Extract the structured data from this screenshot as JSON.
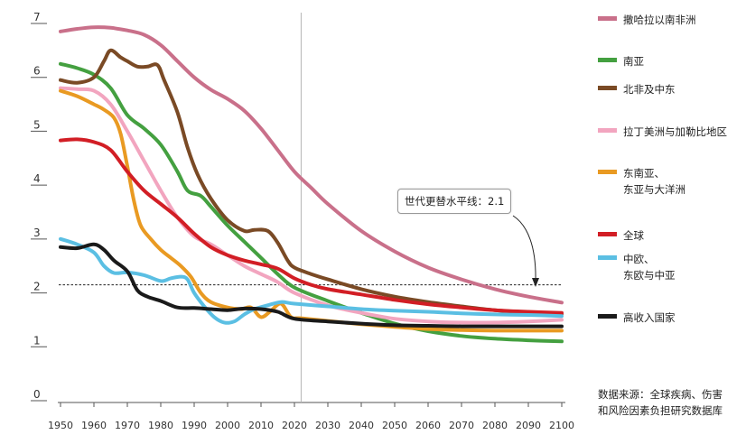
{
  "chart_data": {
    "type": "line",
    "title": "",
    "xlabel": "",
    "ylabel": "",
    "xlim": [
      1950,
      2100
    ],
    "ylim": [
      0,
      7
    ],
    "x_ticks": [
      "1950",
      "1960",
      "1970",
      "1980",
      "1990",
      "2000",
      "2010",
      "2020",
      "2030",
      "2040",
      "2050",
      "2060",
      "2070",
      "2080",
      "2090",
      "2100"
    ],
    "y_ticks": [
      "0",
      "1",
      "2",
      "3",
      "4",
      "5",
      "6",
      "7"
    ],
    "current_year_marker": 2022,
    "reference_line": {
      "value": 2.1,
      "label": "世代更替水平线：2.1"
    },
    "legend_position": "right",
    "series": [
      {
        "name": "撒哈拉以南非洲",
        "color": "#c9708a",
        "points": [
          [
            1950,
            6.8
          ],
          [
            1955,
            6.85
          ],
          [
            1960,
            6.88
          ],
          [
            1965,
            6.87
          ],
          [
            1970,
            6.82
          ],
          [
            1975,
            6.74
          ],
          [
            1980,
            6.55
          ],
          [
            1985,
            6.25
          ],
          [
            1990,
            5.95
          ],
          [
            1995,
            5.72
          ],
          [
            2000,
            5.55
          ],
          [
            2005,
            5.33
          ],
          [
            2010,
            5.0
          ],
          [
            2015,
            4.6
          ],
          [
            2020,
            4.2
          ],
          [
            2025,
            3.9
          ],
          [
            2030,
            3.6
          ],
          [
            2040,
            3.1
          ],
          [
            2050,
            2.72
          ],
          [
            2060,
            2.42
          ],
          [
            2070,
            2.2
          ],
          [
            2080,
            2.02
          ],
          [
            2090,
            1.88
          ],
          [
            2100,
            1.77
          ]
        ]
      },
      {
        "name": "南亚",
        "color": "#44a040",
        "points": [
          [
            1950,
            6.2
          ],
          [
            1955,
            6.12
          ],
          [
            1960,
            6.0
          ],
          [
            1965,
            5.75
          ],
          [
            1970,
            5.25
          ],
          [
            1975,
            5.0
          ],
          [
            1980,
            4.7
          ],
          [
            1985,
            4.2
          ],
          [
            1988,
            3.85
          ],
          [
            1992,
            3.75
          ],
          [
            1995,
            3.55
          ],
          [
            2000,
            3.2
          ],
          [
            2005,
            2.9
          ],
          [
            2010,
            2.6
          ],
          [
            2015,
            2.3
          ],
          [
            2020,
            2.05
          ],
          [
            2030,
            1.8
          ],
          [
            2040,
            1.58
          ],
          [
            2050,
            1.38
          ],
          [
            2060,
            1.24
          ],
          [
            2070,
            1.15
          ],
          [
            2080,
            1.1
          ],
          [
            2090,
            1.07
          ],
          [
            2100,
            1.05
          ]
        ]
      },
      {
        "name": "北非及中东",
        "color": "#7a4a25",
        "points": [
          [
            1950,
            5.9
          ],
          [
            1955,
            5.85
          ],
          [
            1960,
            5.95
          ],
          [
            1963,
            6.25
          ],
          [
            1965,
            6.45
          ],
          [
            1968,
            6.32
          ],
          [
            1970,
            6.25
          ],
          [
            1973,
            6.15
          ],
          [
            1976,
            6.15
          ],
          [
            1979,
            6.18
          ],
          [
            1981,
            5.9
          ],
          [
            1985,
            5.3
          ],
          [
            1988,
            4.65
          ],
          [
            1991,
            4.15
          ],
          [
            1995,
            3.7
          ],
          [
            2000,
            3.3
          ],
          [
            2005,
            3.1
          ],
          [
            2008,
            3.12
          ],
          [
            2012,
            3.1
          ],
          [
            2015,
            2.88
          ],
          [
            2018,
            2.55
          ],
          [
            2020,
            2.42
          ],
          [
            2025,
            2.3
          ],
          [
            2030,
            2.2
          ],
          [
            2040,
            2.02
          ],
          [
            2050,
            1.88
          ],
          [
            2060,
            1.78
          ],
          [
            2070,
            1.7
          ],
          [
            2080,
            1.63
          ],
          [
            2090,
            1.59
          ],
          [
            2100,
            1.56
          ]
        ]
      },
      {
        "name": "拉丁美洲与加勒比地区",
        "color": "#f2a5bf",
        "points": [
          [
            1950,
            5.75
          ],
          [
            1955,
            5.73
          ],
          [
            1960,
            5.7
          ],
          [
            1965,
            5.45
          ],
          [
            1970,
            4.95
          ],
          [
            1975,
            4.4
          ],
          [
            1980,
            3.85
          ],
          [
            1985,
            3.35
          ],
          [
            1990,
            3.0
          ],
          [
            1995,
            2.85
          ],
          [
            2000,
            2.65
          ],
          [
            2005,
            2.45
          ],
          [
            2010,
            2.3
          ],
          [
            2015,
            2.15
          ],
          [
            2020,
            1.95
          ],
          [
            2030,
            1.72
          ],
          [
            2040,
            1.58
          ],
          [
            2050,
            1.47
          ],
          [
            2060,
            1.42
          ],
          [
            2070,
            1.4
          ],
          [
            2080,
            1.4
          ],
          [
            2090,
            1.42
          ],
          [
            2100,
            1.45
          ]
        ]
      },
      {
        "name": "东南亚、\n东亚与大洋洲",
        "color": "#e99a22",
        "points": [
          [
            1950,
            5.7
          ],
          [
            1955,
            5.6
          ],
          [
            1960,
            5.45
          ],
          [
            1963,
            5.35
          ],
          [
            1966,
            5.2
          ],
          [
            1968,
            4.9
          ],
          [
            1970,
            4.3
          ],
          [
            1972,
            3.65
          ],
          [
            1974,
            3.2
          ],
          [
            1977,
            2.95
          ],
          [
            1980,
            2.75
          ],
          [
            1983,
            2.6
          ],
          [
            1986,
            2.45
          ],
          [
            1989,
            2.25
          ],
          [
            1992,
            1.95
          ],
          [
            1995,
            1.78
          ],
          [
            2000,
            1.68
          ],
          [
            2004,
            1.65
          ],
          [
            2007,
            1.68
          ],
          [
            2010,
            1.5
          ],
          [
            2013,
            1.62
          ],
          [
            2016,
            1.75
          ],
          [
            2019,
            1.5
          ],
          [
            2022,
            1.48
          ],
          [
            2030,
            1.43
          ],
          [
            2040,
            1.37
          ],
          [
            2050,
            1.32
          ],
          [
            2060,
            1.28
          ],
          [
            2070,
            1.26
          ],
          [
            2080,
            1.25
          ],
          [
            2090,
            1.25
          ],
          [
            2100,
            1.25
          ]
        ]
      },
      {
        "name": "全球",
        "color": "#d21e25",
        "points": [
          [
            1950,
            4.78
          ],
          [
            1955,
            4.8
          ],
          [
            1960,
            4.75
          ],
          [
            1965,
            4.6
          ],
          [
            1970,
            4.2
          ],
          [
            1975,
            3.85
          ],
          [
            1980,
            3.6
          ],
          [
            1985,
            3.35
          ],
          [
            1990,
            3.05
          ],
          [
            1995,
            2.8
          ],
          [
            2000,
            2.65
          ],
          [
            2005,
            2.55
          ],
          [
            2010,
            2.48
          ],
          [
            2015,
            2.4
          ],
          [
            2020,
            2.22
          ],
          [
            2025,
            2.1
          ],
          [
            2030,
            2.02
          ],
          [
            2040,
            1.92
          ],
          [
            2050,
            1.82
          ],
          [
            2060,
            1.74
          ],
          [
            2070,
            1.68
          ],
          [
            2080,
            1.63
          ],
          [
            2090,
            1.6
          ],
          [
            2100,
            1.58
          ]
        ]
      },
      {
        "name": "中欧、\n东欧与中亚",
        "color": "#5bbfe3",
        "points": [
          [
            1950,
            2.95
          ],
          [
            1955,
            2.85
          ],
          [
            1960,
            2.7
          ],
          [
            1963,
            2.45
          ],
          [
            1966,
            2.32
          ],
          [
            1970,
            2.33
          ],
          [
            1975,
            2.28
          ],
          [
            1980,
            2.17
          ],
          [
            1983,
            2.22
          ],
          [
            1986,
            2.25
          ],
          [
            1988,
            2.2
          ],
          [
            1990,
            1.95
          ],
          [
            1993,
            1.7
          ],
          [
            1996,
            1.5
          ],
          [
            1999,
            1.4
          ],
          [
            2002,
            1.42
          ],
          [
            2005,
            1.55
          ],
          [
            2008,
            1.65
          ],
          [
            2012,
            1.72
          ],
          [
            2016,
            1.78
          ],
          [
            2020,
            1.75
          ],
          [
            2030,
            1.7
          ],
          [
            2040,
            1.65
          ],
          [
            2050,
            1.62
          ],
          [
            2060,
            1.6
          ],
          [
            2070,
            1.57
          ],
          [
            2080,
            1.55
          ],
          [
            2090,
            1.54
          ],
          [
            2100,
            1.52
          ]
        ]
      },
      {
        "name": "高收入国家",
        "color": "#1a1a1a",
        "points": [
          [
            1950,
            2.8
          ],
          [
            1955,
            2.78
          ],
          [
            1960,
            2.85
          ],
          [
            1963,
            2.75
          ],
          [
            1966,
            2.55
          ],
          [
            1970,
            2.35
          ],
          [
            1973,
            2.0
          ],
          [
            1976,
            1.88
          ],
          [
            1980,
            1.8
          ],
          [
            1985,
            1.68
          ],
          [
            1990,
            1.67
          ],
          [
            1995,
            1.65
          ],
          [
            2000,
            1.63
          ],
          [
            2005,
            1.66
          ],
          [
            2010,
            1.65
          ],
          [
            2015,
            1.6
          ],
          [
            2020,
            1.47
          ],
          [
            2030,
            1.42
          ],
          [
            2040,
            1.38
          ],
          [
            2050,
            1.35
          ],
          [
            2060,
            1.34
          ],
          [
            2070,
            1.33
          ],
          [
            2080,
            1.33
          ],
          [
            2090,
            1.33
          ],
          [
            2100,
            1.33
          ]
        ]
      }
    ]
  },
  "source": "数据来源：全球疾病、伤害\n和风险因素负担研究数据库"
}
